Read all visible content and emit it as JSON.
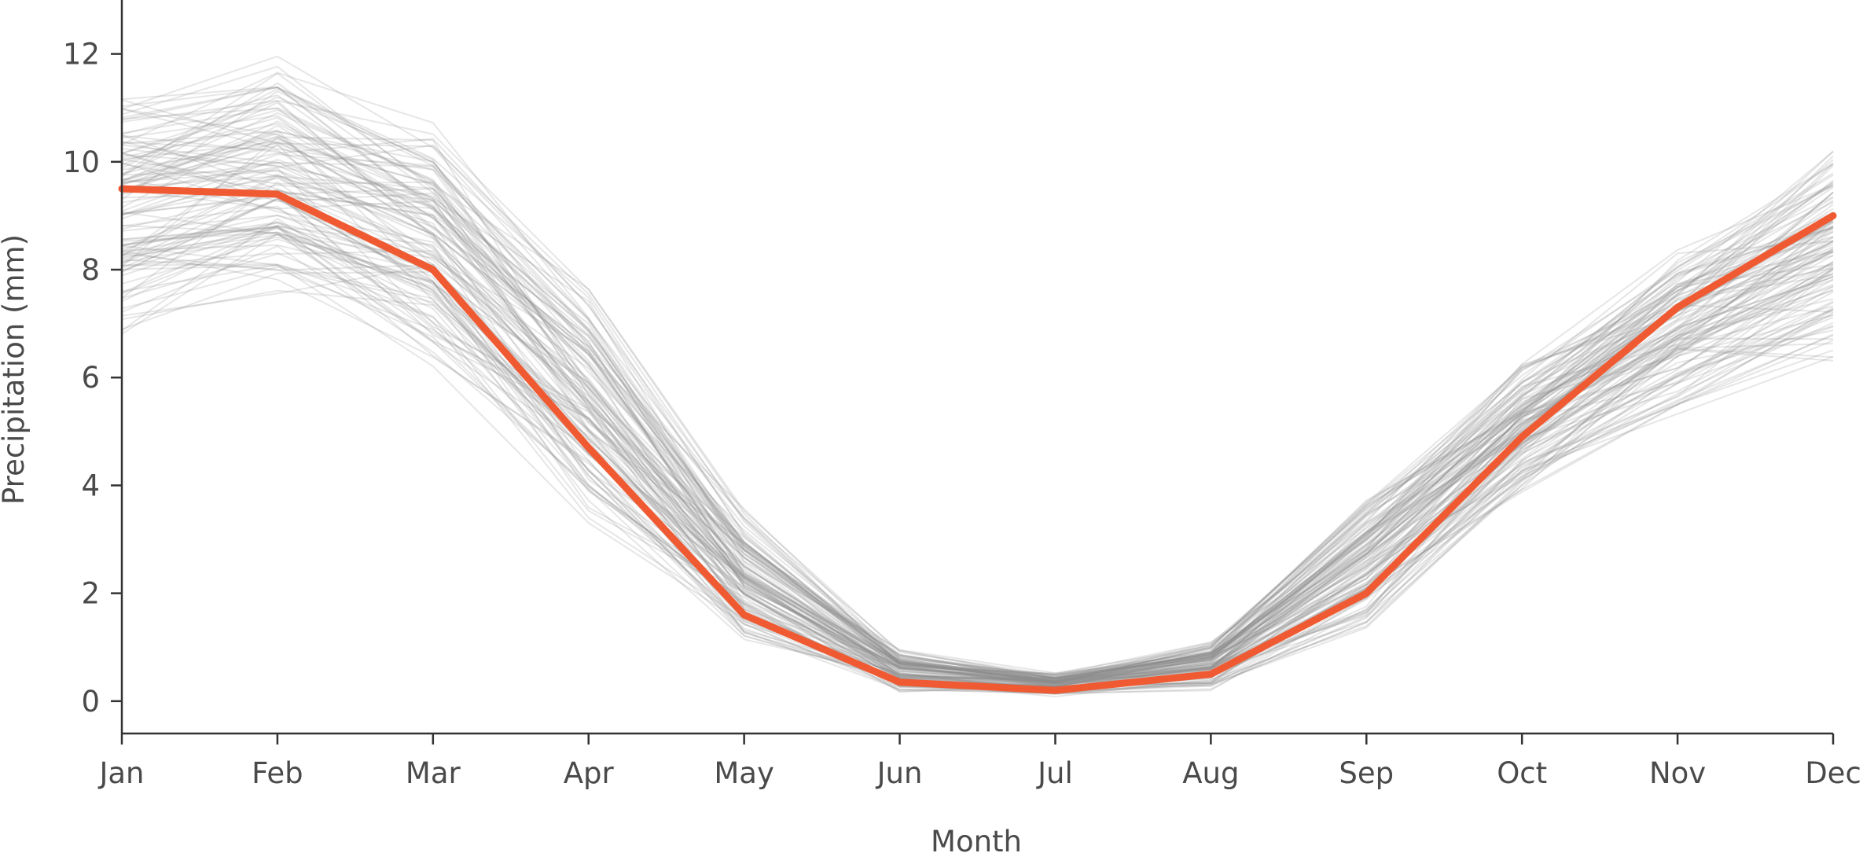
{
  "chart_data": {
    "type": "line",
    "xlabel": "Month",
    "ylabel": "Precipitation (mm)",
    "categories": [
      "Jan",
      "Feb",
      "Mar",
      "Apr",
      "May",
      "Jun",
      "Jul",
      "Aug",
      "Sep",
      "Oct",
      "Nov",
      "Dec"
    ],
    "yticks": [
      0,
      2,
      4,
      6,
      8,
      10,
      12
    ],
    "ylim": [
      -0.6,
      13
    ],
    "grid": false,
    "legend": "none",
    "highlight_color": "#f05a32",
    "background_color": "#8c8c8c",
    "highlight_series": {
      "values": [
        9.5,
        9.4,
        8.0,
        4.7,
        1.6,
        0.35,
        0.2,
        0.5,
        2.0,
        4.9,
        7.3,
        9.0
      ]
    },
    "background_series_envelope": {
      "count": 120,
      "min": [
        6.3,
        7.0,
        5.7,
        2.8,
        0.7,
        0.1,
        0.05,
        0.12,
        0.9,
        3.6,
        5.0,
        5.7
      ],
      "max": [
        11.8,
        12.4,
        11.2,
        8.2,
        3.8,
        1.05,
        0.6,
        1.25,
        4.2,
        6.6,
        8.8,
        10.8
      ]
    }
  }
}
